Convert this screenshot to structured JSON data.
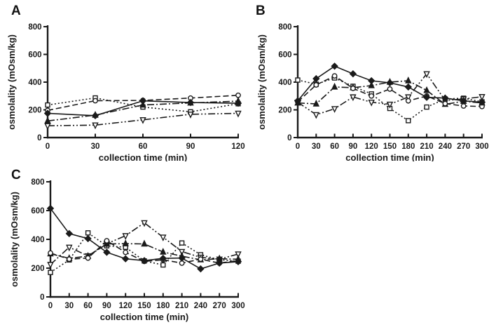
{
  "page": {
    "background": "#ffffff",
    "ink": "#1a1a1a"
  },
  "chart_data": [
    {
      "panel": "A",
      "type": "line",
      "xlabel": "collection time (min)",
      "ylabel": "osmolality (mOsm/kg)",
      "xlim": [
        0,
        120
      ],
      "ylim": [
        0,
        800
      ],
      "xticks": [
        0,
        30,
        60,
        90,
        120
      ],
      "yticks": [
        0,
        200,
        400,
        600,
        800
      ],
      "x": [
        0,
        30,
        60,
        90,
        120
      ],
      "series": [
        {
          "name": "square-dotted-series",
          "marker": "square-open",
          "line_style": "dotted",
          "values": [
            235,
            286,
            220,
            186,
            244
          ]
        },
        {
          "name": "triangle-down-series",
          "marker": "triangle-down-open",
          "line_style": "dash-dot-dot",
          "values": [
            85,
            90,
            128,
            168,
            175
          ]
        },
        {
          "name": "triangle-up-series",
          "marker": "triangle-up-filled",
          "line_style": "dash-dot",
          "values": [
            120,
            162,
            235,
            250,
            263
          ]
        },
        {
          "name": "circle-dashed-series",
          "marker": "circle-open",
          "line_style": "dashed",
          "values": [
            196,
            266,
            268,
            285,
            305
          ]
        },
        {
          "name": "diamond-solid-series",
          "marker": "diamond-filled",
          "line_style": "solid",
          "values": [
            175,
            158,
            265,
            253,
            248
          ]
        }
      ]
    },
    {
      "panel": "B",
      "type": "line",
      "xlabel": "collection time (min)",
      "ylabel": "osmolality (mOsm/kg)",
      "xlim": [
        0,
        300
      ],
      "ylim": [
        0,
        800
      ],
      "xticks": [
        0,
        30,
        60,
        90,
        120,
        150,
        180,
        210,
        240,
        270,
        300
      ],
      "yticks": [
        0,
        200,
        400,
        600,
        800
      ],
      "x": [
        0,
        30,
        60,
        90,
        120,
        150,
        180,
        210,
        240,
        270,
        300
      ],
      "series": [
        {
          "name": "square-dotted-series",
          "marker": "square-open",
          "line_style": "dotted",
          "values": [
            415,
            385,
            430,
            370,
            315,
            210,
            122,
            220,
            278,
            284,
            258
          ]
        },
        {
          "name": "triangle-down-series",
          "marker": "triangle-down-open",
          "line_style": "dash-dot-dot",
          "values": [
            255,
            165,
            208,
            293,
            255,
            240,
            293,
            460,
            268,
            278,
            295
          ]
        },
        {
          "name": "triangle-up-series",
          "marker": "triangle-up-filled",
          "line_style": "dash-dot",
          "values": [
            250,
            243,
            365,
            360,
            375,
            400,
            410,
            340,
            240,
            262,
            250
          ]
        },
        {
          "name": "circle-dashed-series",
          "marker": "circle-open",
          "line_style": "dashed",
          "values": [
            258,
            380,
            445,
            355,
            300,
            350,
            265,
            300,
            245,
            228,
            224
          ]
        },
        {
          "name": "diamond-solid-series",
          "marker": "diamond-filled",
          "line_style": "solid",
          "values": [
            265,
            425,
            515,
            460,
            410,
            395,
            365,
            290,
            285,
            265,
            255
          ]
        }
      ]
    },
    {
      "panel": "C",
      "type": "line",
      "xlabel": "collection time (min)",
      "ylabel": "osmolality (mOsm/kg)",
      "xlim": [
        0,
        300
      ],
      "ylim": [
        0,
        800
      ],
      "xticks": [
        0,
        30,
        60,
        90,
        120,
        150,
        180,
        210,
        240,
        270,
        300
      ],
      "yticks": [
        0,
        200,
        400,
        600,
        800
      ],
      "x": [
        0,
        30,
        60,
        90,
        120,
        150,
        180,
        210,
        240,
        270,
        300
      ],
      "series": [
        {
          "name": "square-dotted-series",
          "marker": "square-open",
          "line_style": "dotted",
          "values": [
            170,
            257,
            445,
            355,
            345,
            250,
            222,
            375,
            293,
            258,
            248
          ]
        },
        {
          "name": "triangle-down-series",
          "marker": "triangle-down-open",
          "line_style": "dash-dot-dot",
          "values": [
            225,
            345,
            285,
            370,
            425,
            515,
            415,
            315,
            275,
            262,
            298
          ]
        },
        {
          "name": "triangle-up-series",
          "marker": "triangle-up-filled",
          "line_style": "dash-dot",
          "values": [
            300,
            268,
            283,
            368,
            370,
            368,
            312,
            283,
            258,
            265,
            262
          ]
        },
        {
          "name": "circle-dashed-series",
          "marker": "circle-open",
          "line_style": "dashed",
          "values": [
            305,
            262,
            270,
            390,
            310,
            247,
            258,
            235,
            262,
            235,
            253
          ]
        },
        {
          "name": "diamond-solid-series",
          "marker": "diamond-filled",
          "line_style": "solid",
          "values": [
            615,
            440,
            405,
            310,
            265,
            252,
            268,
            270,
            195,
            235,
            245
          ]
        }
      ]
    }
  ]
}
